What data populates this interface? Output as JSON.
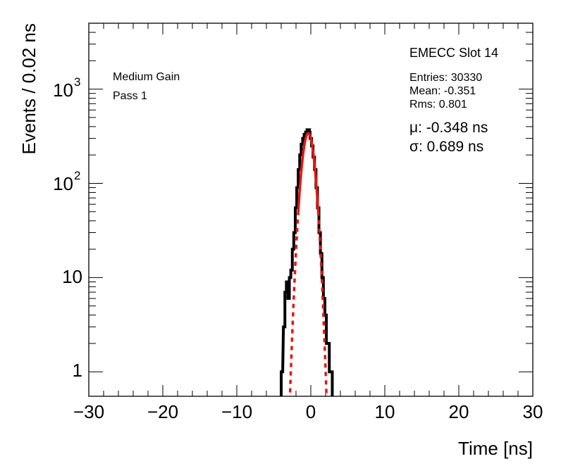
{
  "chart_data": {
    "type": "line",
    "title": "EMECC Slot 14",
    "xlabel": "Time [ns]",
    "ylabel": "Events / 0.02 ns",
    "xlim": [
      -30,
      30
    ],
    "ylim": [
      0.55,
      5000
    ],
    "yscale": "log",
    "grid": false,
    "x_ticks": [
      -30,
      -20,
      -10,
      0,
      10,
      20,
      30
    ],
    "x_tick_labels": [
      "−30",
      "−20",
      "−10",
      "0",
      "10",
      "20",
      "30"
    ],
    "y_ticks": [
      1,
      10,
      100,
      1000
    ],
    "y_tick_labels": {
      "t1": "1",
      "t10": "10",
      "t100": {
        "base": "10",
        "exp": "2"
      },
      "t1000": {
        "base": "10",
        "exp": "3"
      }
    },
    "annotations": {
      "left_line1": "Medium Gain",
      "left_line2": "Pass 1",
      "entries": "Entries: 30330",
      "mean": "Mean: -0.351",
      "rms": "Rms: 0.801",
      "mu": "μ: -0.348 ns",
      "sigma": "σ: 0.689 ns"
    },
    "series": [
      {
        "kind": "histogram",
        "color": "#000000",
        "x": [
          -3.9,
          -3.6,
          -3.4,
          -3.2,
          -3.0,
          -2.8,
          -2.6,
          -2.4,
          -2.2,
          -2.0,
          -1.8,
          -1.6,
          -1.4,
          -1.2,
          -1.0,
          -0.8,
          -0.6,
          -0.4,
          -0.3,
          -0.2,
          0.0,
          0.2,
          0.4,
          0.6,
          0.8,
          1.0,
          1.2,
          1.4,
          1.6,
          1.8,
          2.0,
          2.2,
          2.4,
          2.6,
          2.8
        ],
        "y": [
          1,
          3,
          7,
          9,
          6,
          10,
          12,
          20,
          30,
          55,
          90,
          140,
          200,
          260,
          300,
          330,
          350,
          360,
          370,
          350,
          300,
          250,
          190,
          140,
          90,
          55,
          30,
          18,
          10,
          6,
          4,
          2,
          2,
          1,
          1
        ]
      },
      {
        "kind": "gaussian_fit",
        "color": "#e8150f",
        "amplitude": 340,
        "mu": -0.348,
        "sigma": 0.689,
        "fit_range": [
          -1.7,
          1.0
        ],
        "extended_range": [
          -2.8,
          2.2
        ]
      }
    ]
  }
}
